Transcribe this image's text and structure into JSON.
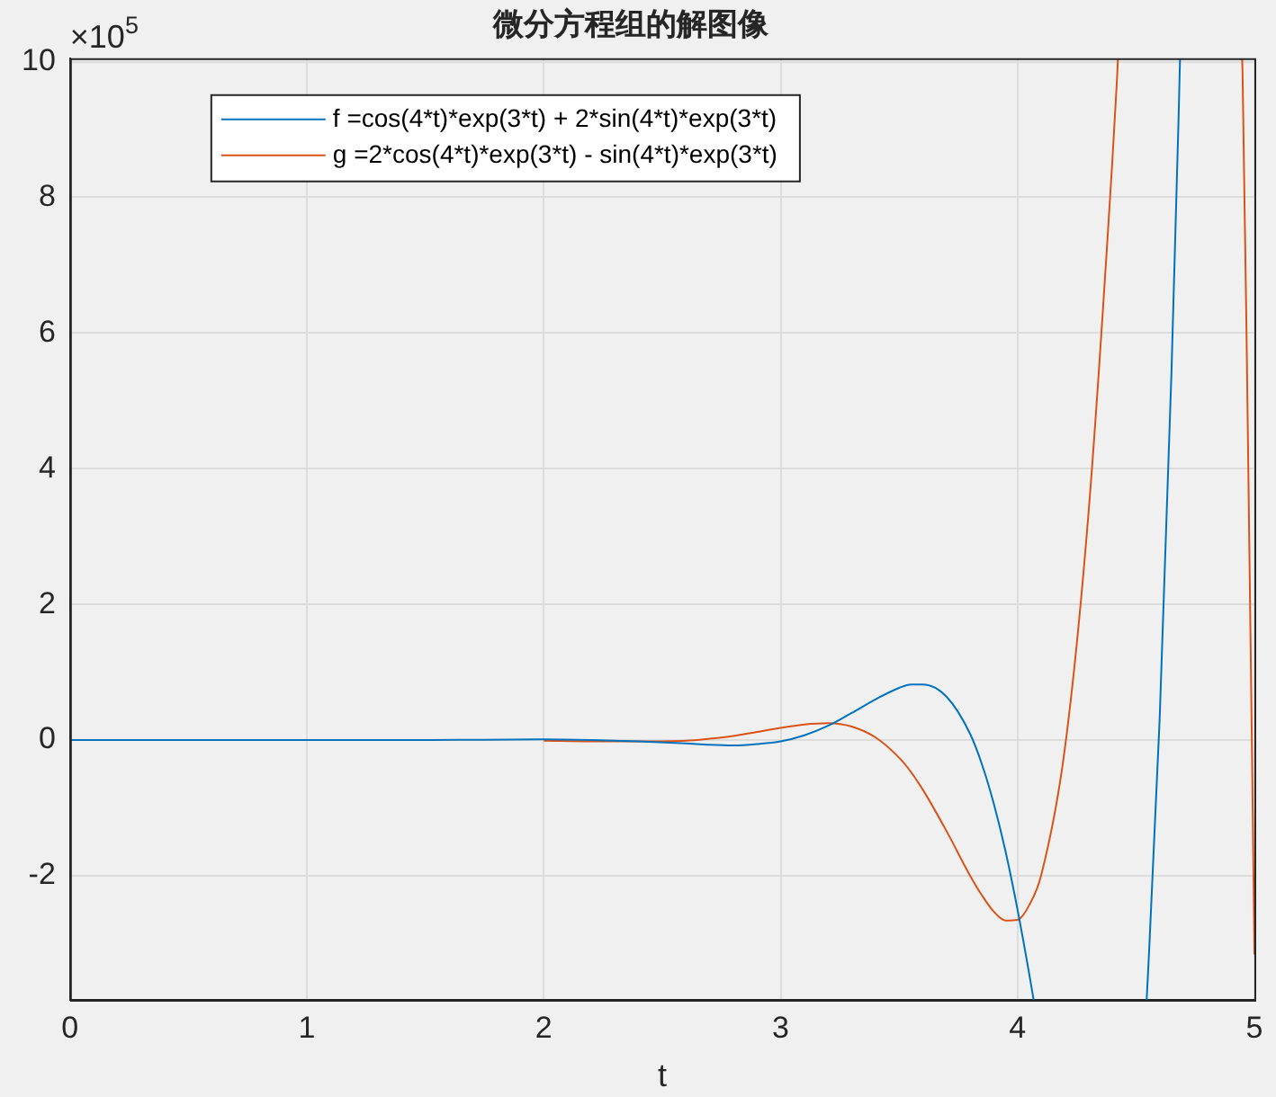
{
  "chart_data": {
    "type": "line",
    "title": "微分方程组的解图像",
    "xlabel": "t",
    "annotations": [
      "×10$^{5}$"
    ],
    "xlim": [
      0,
      5
    ],
    "xticks": [
      0,
      1,
      2,
      3,
      4,
      5
    ],
    "ylim": [
      -3.83,
      10.05
    ],
    "yticks": [
      -2,
      0,
      2,
      4,
      6,
      8,
      10
    ],
    "grid": true,
    "legend": "top left",
    "marker": "none",
    "line_style": "solid",
    "series": [
      {
        "name": "f =cos(4*t)*exp(3*t) + 2*sin(4*t)*exp(3*t)",
        "color": "#0072bd",
        "x": [
          0,
          0.5,
          1,
          1.5,
          2,
          2.2,
          2.4,
          2.6,
          2.7,
          2.8,
          2.9,
          3,
          3.1,
          3.2,
          3.3,
          3.4,
          3.5,
          3.55,
          3.6,
          3.7,
          3.8,
          3.85,
          3.9,
          3.95,
          4,
          4.05,
          4.068
        ],
        "values": [
          0,
          0,
          0,
          0,
          0.01,
          0,
          -0.02,
          -0.05,
          -0.07,
          -0.08,
          -0.06,
          -0.02,
          0.07,
          0.21,
          0.4,
          0.6,
          0.77,
          0.82,
          0.82,
          0.64,
          0.09,
          -0.36,
          -0.94,
          -1.65,
          -2.5,
          -3.46,
          -3.83
        ]
      },
      {
        "name": "g =2*cos(4*t)*exp(3*t) - sin(4*t)*exp(3*t)",
        "color": "#d95319",
        "x": [
          2,
          2.2,
          2.4,
          2.6,
          2.7,
          2.8,
          2.9,
          3,
          3.1,
          3.2,
          3.3,
          3.4,
          3.5,
          3.55,
          3.6,
          3.7,
          3.8,
          3.85,
          3.9,
          3.95,
          4,
          4.05,
          4.1,
          4.2,
          4.3,
          4.4,
          4.42,
          4.424
        ],
        "values": [
          -0.01,
          -0.02,
          -0.02,
          -0.01,
          0.02,
          0.06,
          0.12,
          0.18,
          0.23,
          0.25,
          0.2,
          0.04,
          -0.26,
          -0.47,
          -0.73,
          -1.34,
          -2,
          -2.29,
          -2.53,
          -2.66,
          -2.65,
          -2.43,
          -1.99,
          -0.12,
          3.36,
          8.52,
          9.75,
          10.05
        ]
      },
      {
        "color": "#0072bd",
        "x": [
          4.545,
          4.55,
          4.6,
          4.65,
          4.68,
          4.686
        ],
        "values": [
          -3.83,
          -3.5,
          0.31,
          5.43,
          9.18,
          10.05
        ]
      },
      {
        "color": "#d95319",
        "x": [
          4.948,
          4.95,
          4.97,
          4.99,
          5
        ],
        "values": [
          10.05,
          9.83,
          5.15,
          -0.21,
          -3.16
        ]
      }
    ]
  }
}
